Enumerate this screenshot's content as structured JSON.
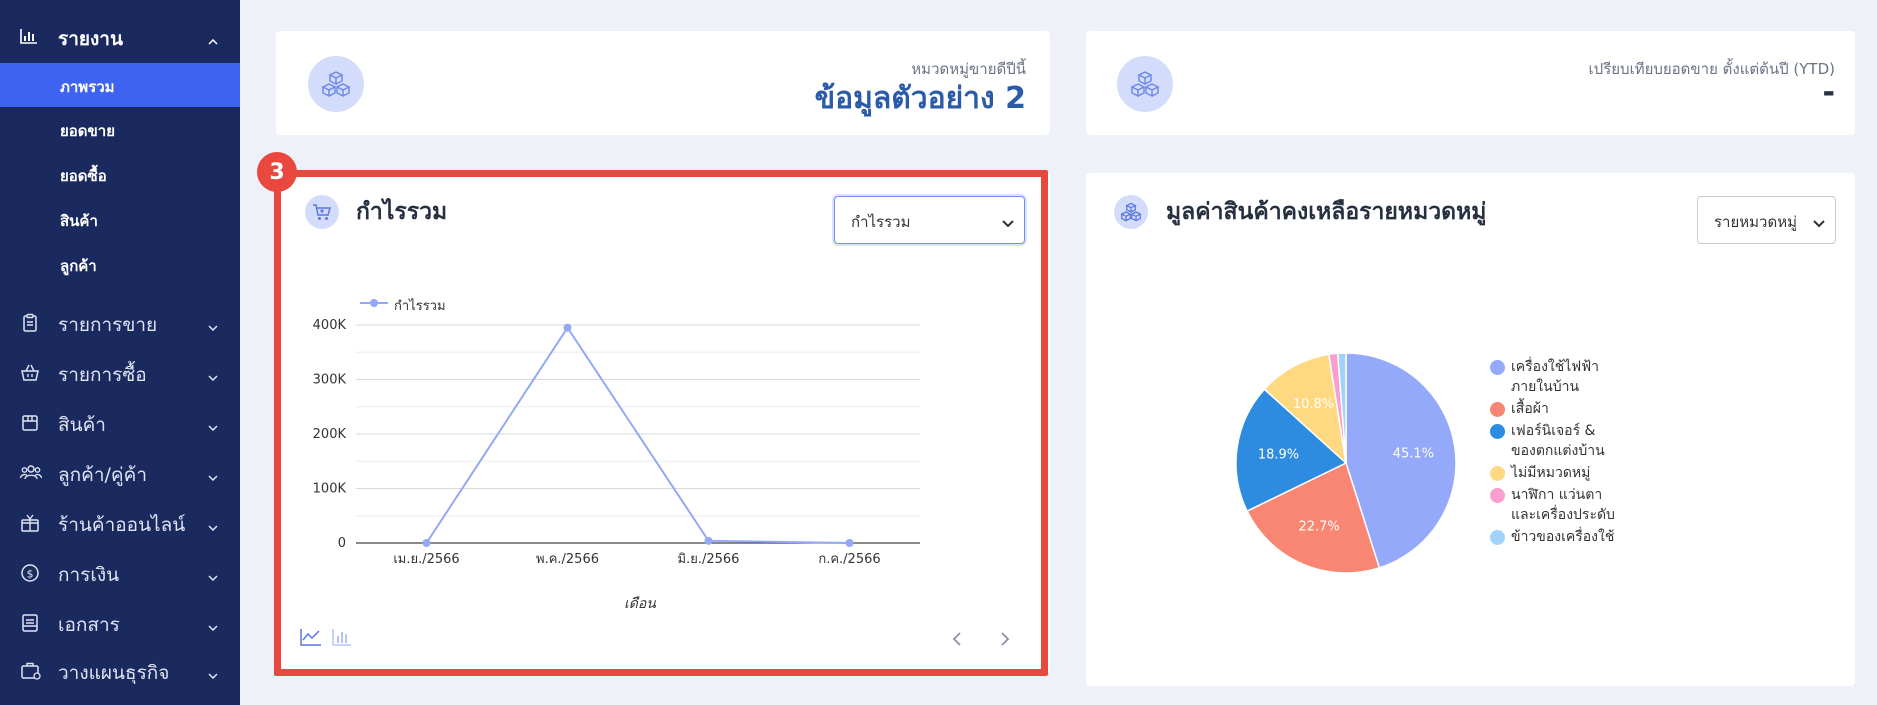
{
  "sidebar": {
    "section": {
      "label": "รายงาน",
      "icon": "bar-chart-icon"
    },
    "sub_items": [
      {
        "label": "ภาพรวม",
        "active": true
      },
      {
        "label": "ยอดขาย",
        "active": false
      },
      {
        "label": "ยอดซื้อ",
        "active": false
      },
      {
        "label": "สินค้า",
        "active": false
      },
      {
        "label": "ลูกค้า",
        "active": false
      }
    ],
    "menu": [
      {
        "label": "รายการขาย",
        "icon": "clipboard-icon"
      },
      {
        "label": "รายการซื้อ",
        "icon": "basket-icon"
      },
      {
        "label": "สินค้า",
        "icon": "box-icon"
      },
      {
        "label": "ลูกค้า/คู่ค้า",
        "icon": "users-icon"
      },
      {
        "label": "ร้านค้าออนไลน์",
        "icon": "store-icon"
      },
      {
        "label": "การเงิน",
        "icon": "dollar-circle-icon"
      },
      {
        "label": "เอกสาร",
        "icon": "document-icon"
      },
      {
        "label": "วางแผนธุรกิจ",
        "icon": "briefcase-icon"
      }
    ]
  },
  "top_left": {
    "subtitle": "หมวดหมู่ขายดีปีนี้",
    "value": "ข้อมูลตัวอย่าง 2",
    "icon": "cubes-icon"
  },
  "top_right": {
    "subtitle": "เปรียบเทียบยอดขาย ตั้งแต่ต้นปี (YTD)",
    "value": "-",
    "icon": "cubes-icon"
  },
  "profit_card": {
    "badge": "3",
    "title": "กำไรรวม",
    "icon": "cart-icon",
    "select_value": "กำไรรวม",
    "legend": "กำไรรวม",
    "xlabel": "เดือน",
    "view_icons": [
      "line-chart-icon",
      "bar-chart-icon"
    ],
    "pager": [
      "prev-icon",
      "next-icon"
    ]
  },
  "inventory_card": {
    "title": "มูลค่าสินค้าคงเหลือรายหมวดหมู่",
    "icon": "cubes-icon",
    "select_value": "รายหมวดหมู่"
  },
  "chart_data": [
    {
      "type": "line",
      "title": "",
      "xlabel": "เดือน",
      "ylabel": "",
      "categories": [
        "เม.ย./2566",
        "พ.ค./2566",
        "มิ.ย./2566",
        "ก.ค./2566"
      ],
      "series": [
        {
          "name": "กำไรรวม",
          "values": [
            0,
            395000,
            4000,
            0
          ],
          "color": "#93a8f7"
        }
      ],
      "yticks": [
        "0",
        "100K",
        "200K",
        "300K",
        "400K"
      ],
      "ylim": [
        0,
        400000
      ],
      "grid": true,
      "legend": "top-left"
    },
    {
      "type": "pie",
      "slices": [
        {
          "label": "เครื่องใช้ไฟฟ้าภายในบ้าน",
          "lines": [
            "เครื่องใช้ไฟฟ้า",
            "ภายในบ้าน"
          ],
          "value": 45.1,
          "display": "45.1%",
          "color": "#94a9f9"
        },
        {
          "label": "เสื้อผ้า",
          "lines": [
            "เสื้อผ้า"
          ],
          "value": 22.7,
          "display": "22.7%",
          "color": "#f98672"
        },
        {
          "label": "เฟอร์นิเจอร์ & ของตกแต่งบ้าน",
          "lines": [
            "เฟอร์นิเจอร์ &",
            "ของตกแต่งบ้าน"
          ],
          "value": 18.9,
          "display": "18.9%",
          "color": "#2e8ce0"
        },
        {
          "label": "ไม่มีหมวดหมู่",
          "lines": [
            "ไม่มีหมวดหมู่"
          ],
          "value": 10.8,
          "display": "10.8%",
          "color": "#ffd981"
        },
        {
          "label": "นาฬิกา แว่นตา และเครื่องประดับ",
          "lines": [
            "นาฬิกา แว่นตา",
            "และเครื่องประดับ"
          ],
          "value": 1.3,
          "display": "",
          "color": "#fa9fcf"
        },
        {
          "label": "ข้าวของเครื่องใช้",
          "lines": [
            "ข้าวของเครื่องใช้"
          ],
          "value": 1.2,
          "display": "",
          "color": "#9fd3fb"
        }
      ],
      "legend": "right"
    }
  ]
}
